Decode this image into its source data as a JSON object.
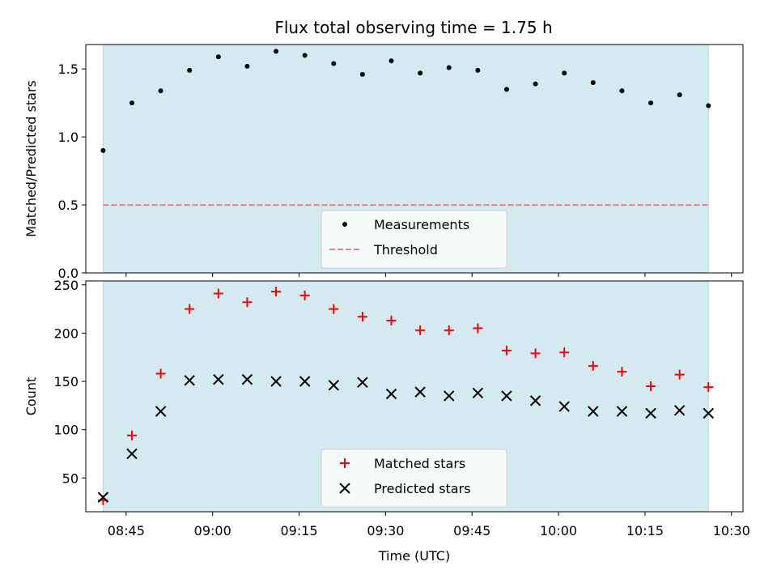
{
  "title": "Flux total observing time = 1.75 h",
  "colors": {
    "observing_span": "#d4eaf0",
    "threshold": "#f08080",
    "measurement": "#000000",
    "matched": "#ff0000",
    "predicted": "#000000"
  },
  "chart_data": [
    {
      "type": "scatter",
      "panel": "top",
      "ylabel": "Matched/Predicted stars",
      "xlim": [
        "08:38",
        "10:32"
      ],
      "ylim": [
        0,
        1.68
      ],
      "yticks": [
        "0.0",
        "0.5",
        "1.0",
        "1.5"
      ],
      "yticks_values": [
        0,
        0.5,
        1.0,
        1.5
      ],
      "shaded_span": [
        "08:41",
        "10:26"
      ],
      "threshold": 0.5,
      "legend": {
        "position": "lower center",
        "items": [
          "Measurements",
          "Threshold"
        ]
      },
      "series": [
        {
          "name": "Measurements",
          "marker": "dot",
          "x": [
            "08:41",
            "08:46",
            "08:51",
            "08:56",
            "09:01",
            "09:06",
            "09:11",
            "09:16",
            "09:21",
            "09:26",
            "09:31",
            "09:36",
            "09:41",
            "09:46",
            "09:51",
            "09:56",
            "10:01",
            "10:06",
            "10:11",
            "10:16",
            "10:21",
            "10:26"
          ],
          "y": [
            0.9,
            1.25,
            1.34,
            1.49,
            1.59,
            1.52,
            1.63,
            1.6,
            1.54,
            1.46,
            1.56,
            1.47,
            1.51,
            1.49,
            1.35,
            1.39,
            1.47,
            1.4,
            1.34,
            1.25,
            1.31,
            1.23
          ]
        },
        {
          "name": "Threshold",
          "style": "dashed",
          "x": [
            "08:41",
            "10:26"
          ],
          "y": [
            0.5,
            0.5
          ]
        }
      ]
    },
    {
      "type": "scatter",
      "panel": "bottom",
      "ylabel": "Count",
      "xlabel": "Time (UTC)",
      "xlim": [
        "08:38",
        "10:32"
      ],
      "xticks": [
        "08:45",
        "09:00",
        "09:15",
        "09:30",
        "09:45",
        "10:00",
        "10:15",
        "10:30"
      ],
      "ylim": [
        15,
        254
      ],
      "yticks": [
        "50",
        "100",
        "150",
        "200",
        "250"
      ],
      "yticks_values": [
        50,
        100,
        150,
        200,
        250
      ],
      "shaded_span": [
        "08:41",
        "10:26"
      ],
      "legend": {
        "position": "lower center",
        "items": [
          "Matched stars",
          "Predicted stars"
        ]
      },
      "series": [
        {
          "name": "Matched stars",
          "marker": "plus",
          "x": [
            "08:41",
            "08:46",
            "08:51",
            "08:56",
            "09:01",
            "09:06",
            "09:11",
            "09:16",
            "09:21",
            "09:26",
            "09:31",
            "09:36",
            "09:41",
            "09:46",
            "09:51",
            "09:56",
            "10:01",
            "10:06",
            "10:11",
            "10:16",
            "10:21",
            "10:26"
          ],
          "y": [
            27,
            94,
            158,
            225,
            241,
            232,
            243,
            239,
            225,
            217,
            213,
            203,
            203,
            205,
            182,
            179,
            180,
            166,
            160,
            145,
            157,
            144
          ]
        },
        {
          "name": "Predicted stars",
          "marker": "x",
          "x": [
            "08:41",
            "08:46",
            "08:51",
            "08:56",
            "09:01",
            "09:06",
            "09:11",
            "09:16",
            "09:21",
            "09:26",
            "09:31",
            "09:36",
            "09:41",
            "09:46",
            "09:51",
            "09:56",
            "10:01",
            "10:06",
            "10:11",
            "10:16",
            "10:21",
            "10:26"
          ],
          "y": [
            30,
            75,
            119,
            151,
            152,
            152,
            150,
            150,
            146,
            149,
            137,
            139,
            135,
            138,
            135,
            130,
            124,
            119,
            119,
            117,
            120,
            117
          ]
        }
      ]
    }
  ]
}
